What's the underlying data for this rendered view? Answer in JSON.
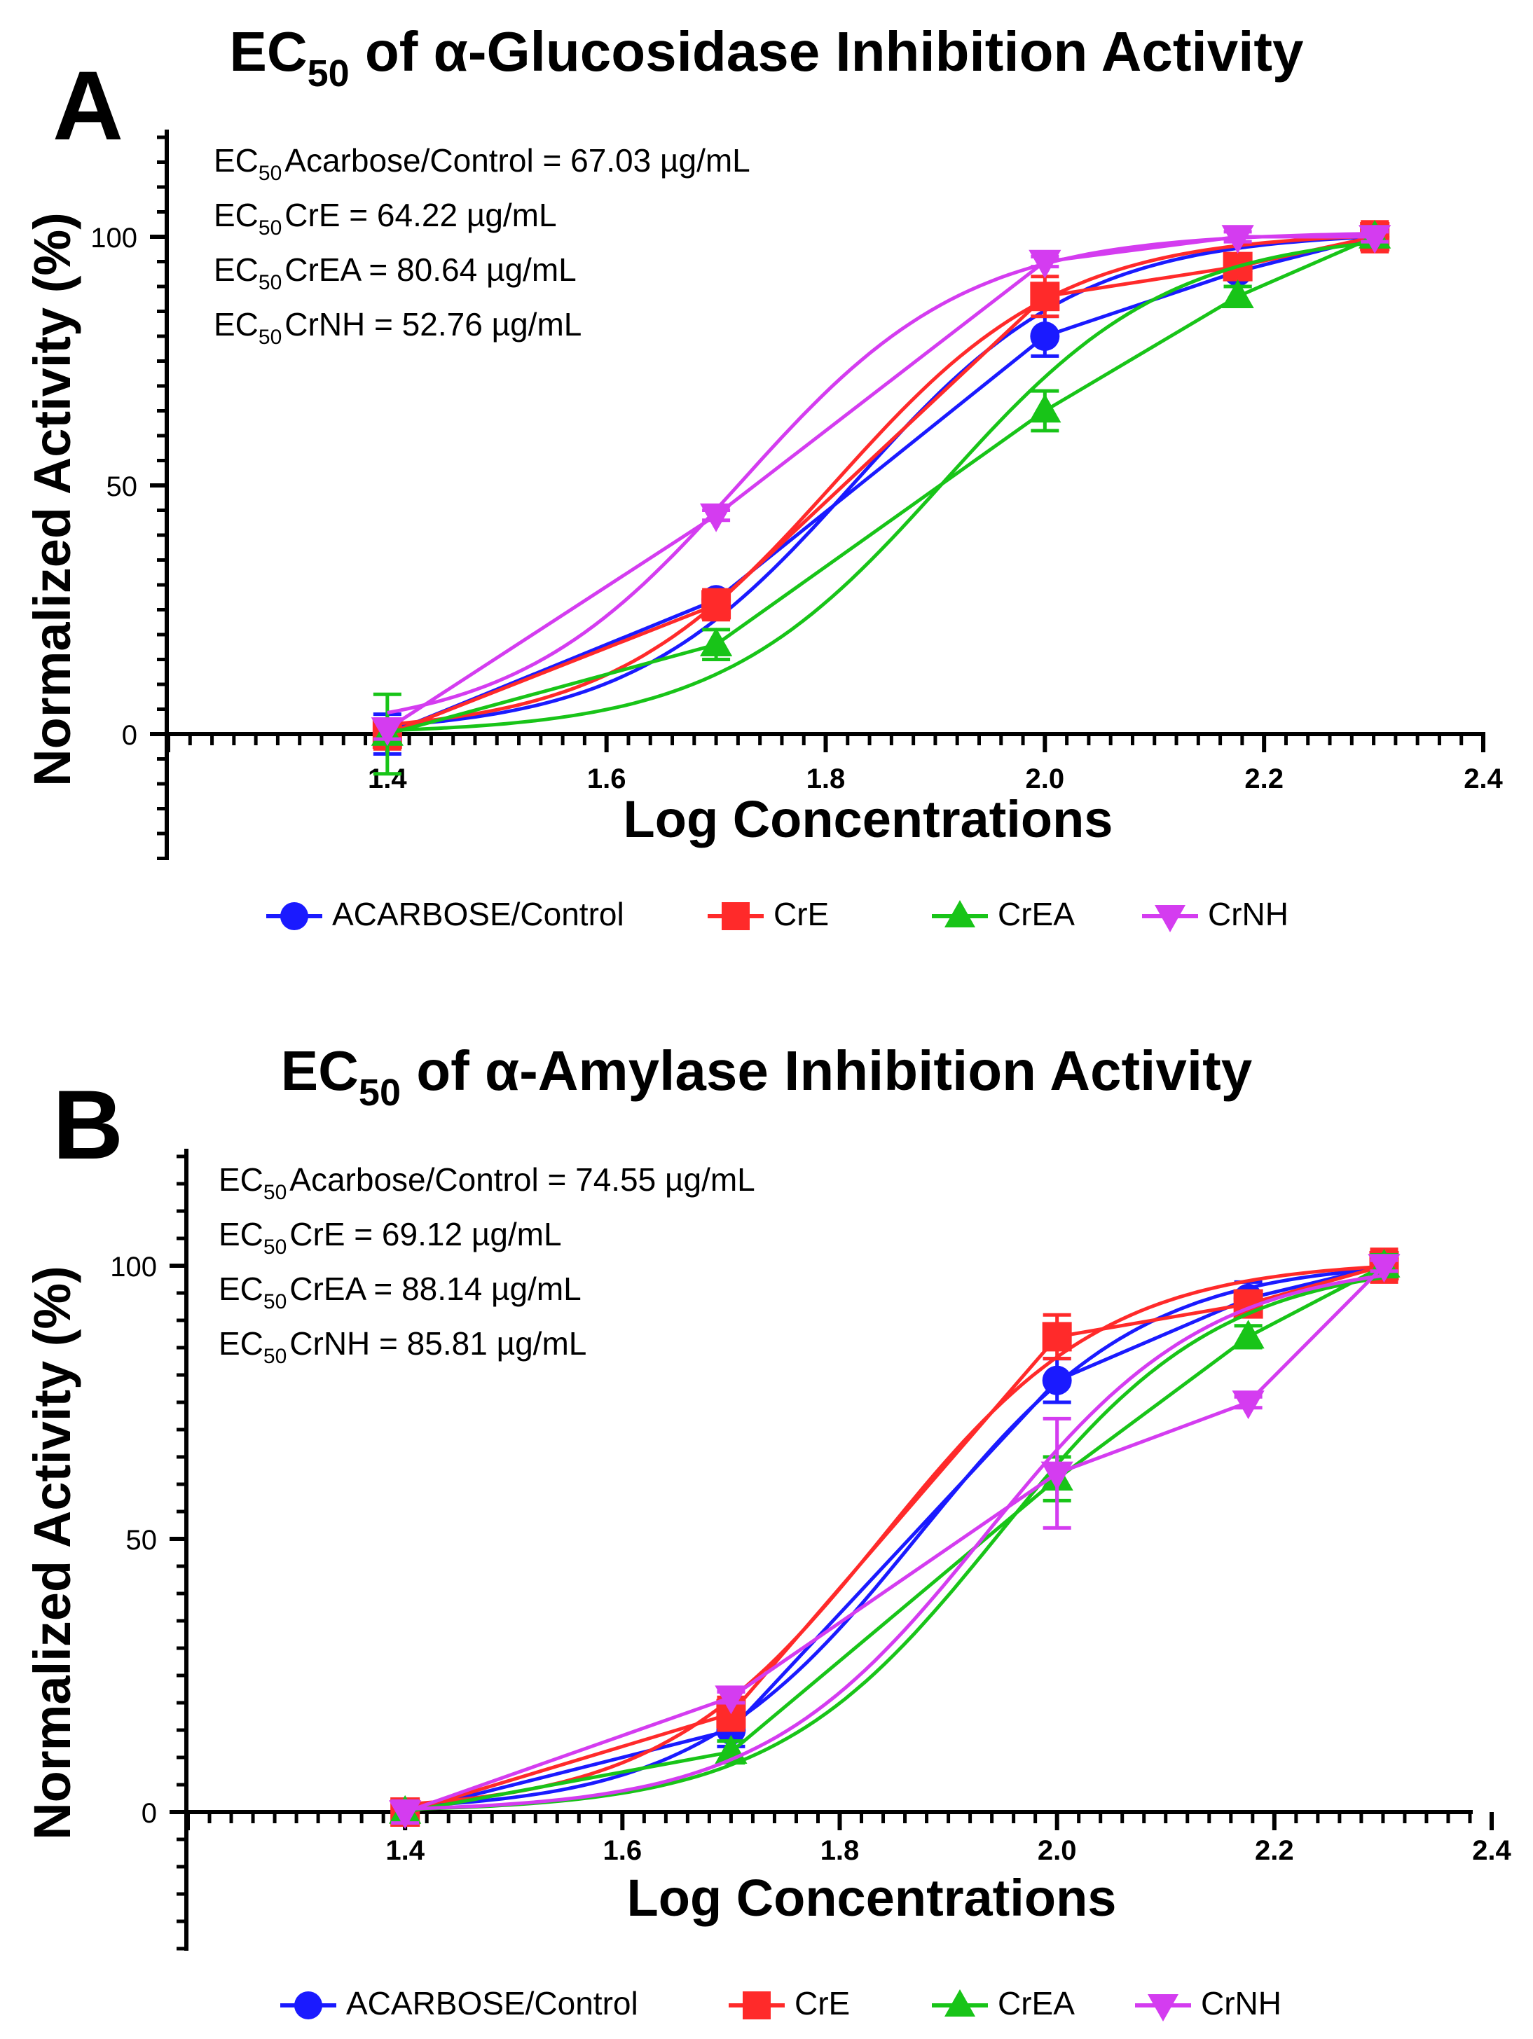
{
  "chart_data": [
    {
      "type": "line",
      "panel_label": "A",
      "title_prefix": "EC",
      "title_subscript": "50",
      "title_suffix": " of α-Glucosidase Inhibition Activity",
      "xlabel": "Log Concentrations",
      "ylabel": "Normalized Activity (%)",
      "xlim": [
        1.2,
        2.4
      ],
      "ylim": [
        -25,
        120
      ],
      "xticks": [
        "1.4",
        "1.6",
        "1.8",
        "2.0",
        "2.2",
        "2.4"
      ],
      "yticks": [
        "0",
        "50",
        "100"
      ],
      "annotations": [
        {
          "prefix": "EC",
          "sub": "50",
          "text": "Acarbose/Control = 67.03 µg/mL"
        },
        {
          "prefix": "EC",
          "sub": "50",
          "text": "CrE = 64.22 µg/mL"
        },
        {
          "prefix": "EC",
          "sub": "50",
          "text": "CrEA = 80.64 µg/mL"
        },
        {
          "prefix": "EC",
          "sub": "50",
          "text": "CrNH = 52.76 µg/mL"
        }
      ],
      "x": [
        1.4,
        1.7,
        2.0,
        2.176,
        2.301
      ],
      "series": [
        {
          "name": "ACARBOSE/Control",
          "color": "#1a1aff",
          "marker": "circle",
          "values": [
            0,
            27,
            80,
            93,
            100
          ],
          "errors": [
            4,
            0,
            4,
            3,
            2
          ],
          "ec50_log": 1.826
        },
        {
          "name": "CrE",
          "color": "#ff2a2a",
          "marker": "square",
          "values": [
            0,
            26,
            88,
            94,
            100
          ],
          "errors": [
            3,
            3,
            4,
            2,
            3
          ],
          "ec50_log": 1.808
        },
        {
          "name": "CrEA",
          "color": "#18c418",
          "marker": "triangle-up",
          "values": [
            0,
            18,
            65,
            88,
            100
          ],
          "errors": [
            8,
            3,
            4,
            2,
            2
          ],
          "ec50_log": 1.907
        },
        {
          "name": "CrNH",
          "color": "#d43cf0",
          "marker": "triangle-down",
          "values": [
            1,
            44,
            95,
            100,
            100
          ],
          "errors": [
            2,
            1,
            1,
            1,
            1
          ],
          "ec50_log": 1.722
        }
      ]
    },
    {
      "type": "line",
      "panel_label": "B",
      "title_prefix": "EC",
      "title_subscript": "50",
      "title_suffix": " of α-Amylase Inhibition Activity",
      "xlabel": "Log Concentrations",
      "ylabel": "Normalized Activity (%)",
      "xlim": [
        1.2,
        2.4
      ],
      "ylim": [
        -25,
        120
      ],
      "xticks": [
        "1.4",
        "1.6",
        "1.8",
        "2.0",
        "2.2",
        "2.4"
      ],
      "yticks": [
        "0",
        "50",
        "100"
      ],
      "annotations": [
        {
          "prefix": "EC",
          "sub": "50",
          "text": "Acarbose/Control = 74.55 µg/mL"
        },
        {
          "prefix": "EC",
          "sub": "50",
          "text": "CrE = 69.12 µg/mL"
        },
        {
          "prefix": "EC",
          "sub": "50",
          "text": "CrEA = 88.14 µg/mL"
        },
        {
          "prefix": "EC",
          "sub": "50",
          "text": "CrNH = 85.81 µg/mL"
        }
      ],
      "x": [
        1.4,
        1.7,
        2.0,
        2.176,
        2.301
      ],
      "series": [
        {
          "name": "ACARBOSE/Control",
          "color": "#1a1aff",
          "marker": "circle",
          "values": [
            0,
            15,
            79,
            94,
            100
          ],
          "errors": [
            2,
            3,
            4,
            3,
            2
          ],
          "ec50_log": 1.872
        },
        {
          "name": "CrE",
          "color": "#ff2a2a",
          "marker": "square",
          "values": [
            0,
            18,
            87,
            93,
            100
          ],
          "errors": [
            2,
            3,
            4,
            2,
            3
          ],
          "ec50_log": 1.84
        },
        {
          "name": "CrEA",
          "color": "#18c418",
          "marker": "triangle-up",
          "values": [
            0,
            11,
            61,
            87,
            100
          ],
          "errors": [
            2,
            2,
            4,
            2,
            2
          ],
          "ec50_log": 1.945
        },
        {
          "name": "CrNH",
          "color": "#d43cf0",
          "marker": "triangle-down",
          "values": [
            0,
            21,
            62,
            75,
            100
          ],
          "errors": [
            2,
            1,
            10,
            1,
            1
          ],
          "ec50_log": 1.933
        }
      ]
    }
  ]
}
